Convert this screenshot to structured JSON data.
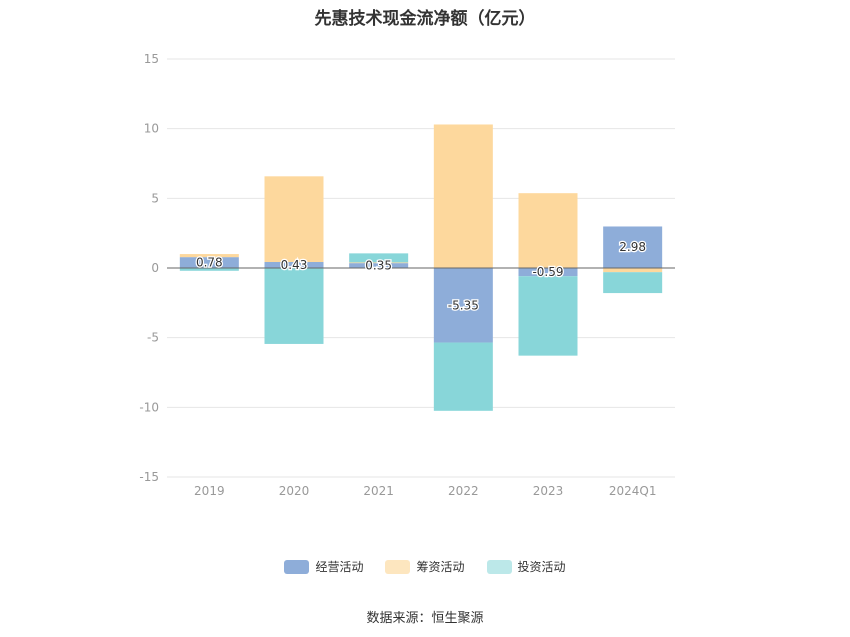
{
  "chart_data": {
    "type": "bar",
    "stacked": true,
    "title": "先惠技术现金流净额（亿元）",
    "categories": [
      "2019",
      "2020",
      "2021",
      "2022",
      "2023",
      "2024Q1"
    ],
    "series": [
      {
        "name": "经营活动",
        "color": "#8eadd9",
        "values": [
          0.78,
          0.43,
          0.35,
          -5.35,
          -0.59,
          2.98
        ]
      },
      {
        "name": "筹资活动",
        "color": "#fdd89d",
        "values": [
          0.22,
          6.15,
          0.05,
          10.3,
          5.37,
          -0.3
        ]
      },
      {
        "name": "投资活动",
        "color": "#88d6d9",
        "values": [
          -0.2,
          -5.45,
          0.65,
          -4.9,
          -5.7,
          -1.5
        ]
      }
    ],
    "data_labels": [
      "0.78",
      "0.43",
      "0.35",
      "-5.35",
      "-0.59",
      "2.98"
    ],
    "yticks": [
      "15",
      "10",
      "5",
      "0",
      "-5",
      "-10",
      "-15"
    ],
    "ylim": [
      -15,
      15
    ],
    "grid": true,
    "legend_position": "bottom"
  },
  "legend": {
    "labels": [
      "经营活动",
      "筹资活动",
      "投资活动"
    ]
  },
  "source": "数据来源：恒生聚源"
}
